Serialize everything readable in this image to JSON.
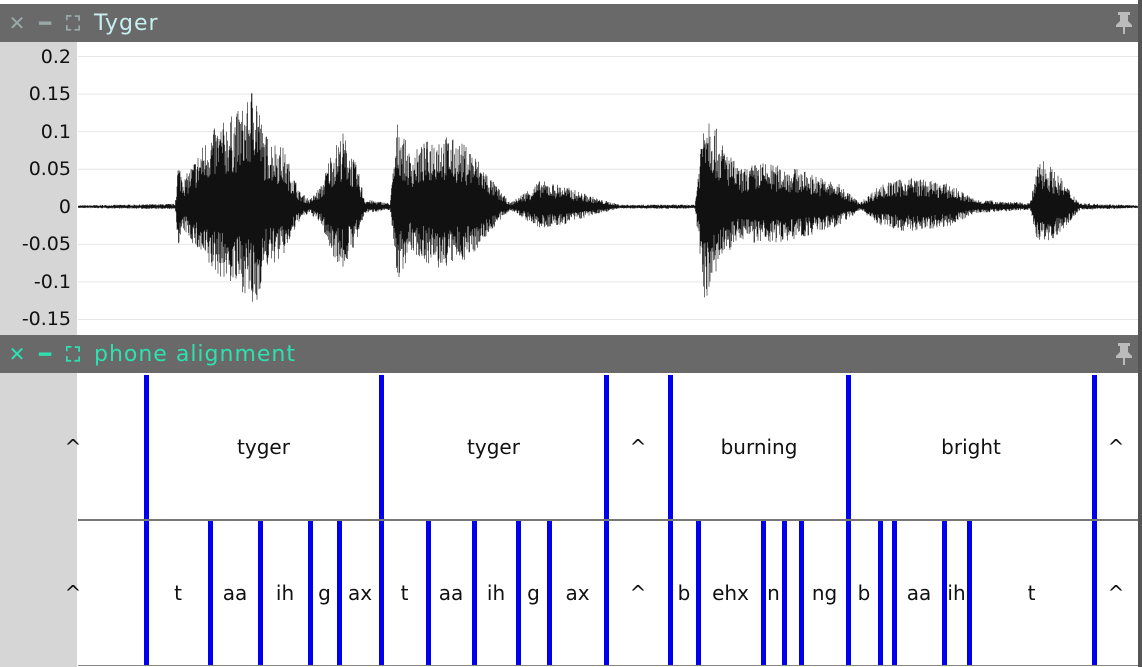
{
  "windows": [
    {
      "title": "Tyger",
      "title_color": "#c8f0f0",
      "icon_color": "#9aa8a8"
    },
    {
      "title": "phone alignment",
      "title_color": "#2ee0b0",
      "icon_color": "#2ee0b0"
    }
  ],
  "icons": [
    "close-icon",
    "minimize-icon",
    "maximize-icon",
    "pin-icon"
  ],
  "waveform": {
    "y_ticks": [
      {
        "v": 0.2,
        "label": "0.2"
      },
      {
        "v": 0.15,
        "label": "0.15"
      },
      {
        "v": 0.1,
        "label": "0.1"
      },
      {
        "v": 0.05,
        "label": "0.05"
      },
      {
        "v": 0,
        "label": "0"
      },
      {
        "v": -0.05,
        "label": "-0.05"
      },
      {
        "v": -0.1,
        "label": "-0.1"
      },
      {
        "v": -0.15,
        "label": "-0.15"
      }
    ],
    "ylim": [
      -0.168,
      0.218
    ],
    "grid": true,
    "color": "#111111"
  },
  "alignment": {
    "boundary_color": "#0000ee",
    "words": [
      {
        "label": "^",
        "start": 0,
        "end": 146
      },
      {
        "label": "tyger",
        "start": 146,
        "end": 381
      },
      {
        "label": "tyger",
        "start": 381,
        "end": 606
      },
      {
        "label": "^",
        "start": 606,
        "end": 670
      },
      {
        "label": "burning",
        "start": 670,
        "end": 848
      },
      {
        "label": "bright",
        "start": 848,
        "end": 1094
      },
      {
        "label": "^",
        "start": 1094,
        "end": 1138
      }
    ],
    "phones": [
      {
        "label": "^",
        "start": 0,
        "end": 146
      },
      {
        "label": "t",
        "start": 146,
        "end": 210
      },
      {
        "label": "aa",
        "start": 210,
        "end": 260
      },
      {
        "label": "ih",
        "start": 260,
        "end": 310
      },
      {
        "label": "g",
        "start": 310,
        "end": 339
      },
      {
        "label": "ax",
        "start": 339,
        "end": 381
      },
      {
        "label": "t",
        "start": 381,
        "end": 428
      },
      {
        "label": "aa",
        "start": 428,
        "end": 474
      },
      {
        "label": "ih",
        "start": 474,
        "end": 518
      },
      {
        "label": "g",
        "start": 518,
        "end": 549
      },
      {
        "label": "ax",
        "start": 549,
        "end": 606
      },
      {
        "label": "^",
        "start": 606,
        "end": 670
      },
      {
        "label": "b",
        "start": 670,
        "end": 698
      },
      {
        "label": "ehx",
        "start": 698,
        "end": 763
      },
      {
        "label": "n",
        "start": 763,
        "end": 784
      },
      {
        "label": "",
        "start": 784,
        "end": 801
      },
      {
        "label": "ng",
        "start": 801,
        "end": 848
      },
      {
        "label": "b",
        "start": 848,
        "end": 880
      },
      {
        "label": "",
        "start": 880,
        "end": 894
      },
      {
        "label": "aa",
        "start": 894,
        "end": 944
      },
      {
        "label": "ih",
        "start": 944,
        "end": 969
      },
      {
        "label": "t",
        "start": 969,
        "end": 1094
      },
      {
        "label": "^",
        "start": 1094,
        "end": 1138
      }
    ]
  }
}
